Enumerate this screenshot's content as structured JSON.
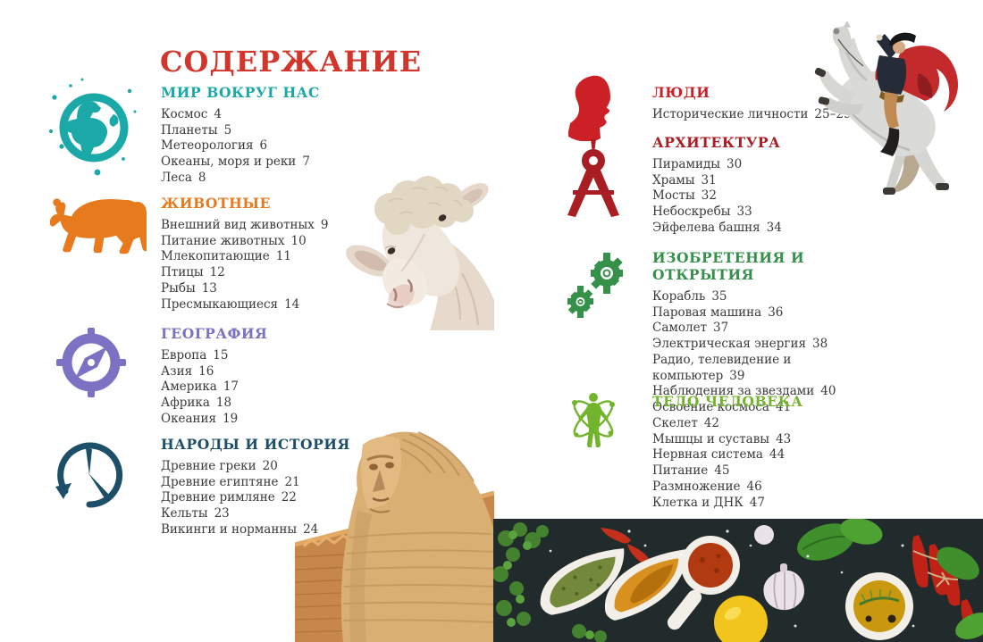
{
  "page_title": {
    "text": "СОДЕРЖАНИЕ",
    "color": "#d2352b"
  },
  "sections": [
    {
      "title": "МИР ВОКРУГ НАС",
      "color": "#1ba8a8",
      "icon": "globe-icon",
      "items": [
        {
          "label": "Космос",
          "page": "4"
        },
        {
          "label": "Планеты",
          "page": "5"
        },
        {
          "label": "Метеорология",
          "page": "6"
        },
        {
          "label": "Океаны, моря и реки",
          "page": "7"
        },
        {
          "label": "Леса",
          "page": "8"
        }
      ]
    },
    {
      "title": "ЖИВОТНЫЕ",
      "color": "#e87a1e",
      "icon": "lion-icon",
      "items": [
        {
          "label": "Внешний вид животных",
          "page": "9"
        },
        {
          "label": "Питание животных",
          "page": "10"
        },
        {
          "label": "Млекопитающие",
          "page": "11"
        },
        {
          "label": "Птицы",
          "page": "12"
        },
        {
          "label": "Рыбы",
          "page": "13"
        },
        {
          "label": "Пресмыкающиеся",
          "page": "14"
        }
      ]
    },
    {
      "title": "ГЕОГРАФИЯ",
      "color": "#7b72c3",
      "icon": "compass-icon",
      "items": [
        {
          "label": "Европа",
          "page": "15"
        },
        {
          "label": "Азия",
          "page": "16"
        },
        {
          "label": "Америка",
          "page": "17"
        },
        {
          "label": "Африка",
          "page": "18"
        },
        {
          "label": "Океания",
          "page": "19"
        }
      ]
    },
    {
      "title": "НАРОДЫ И ИСТОРИЯ",
      "color": "#1d4f68",
      "icon": "history-clock-icon",
      "items": [
        {
          "label": "Древние греки",
          "page": "20"
        },
        {
          "label": "Древние египтяне",
          "page": "21"
        },
        {
          "label": "Древние римляне",
          "page": "22"
        },
        {
          "label": "Кельты",
          "page": "23"
        },
        {
          "label": "Викинги и норманны",
          "page": "24"
        }
      ]
    },
    {
      "title": "ЛЮДИ",
      "color": "#cc2027",
      "icon": "head-silhouette-icon",
      "items": [
        {
          "label": "Исторические личности",
          "page": "25–29"
        }
      ]
    },
    {
      "title": "АРХИТЕКТУРА",
      "color": "#a81e23",
      "icon": "drafting-compass-icon",
      "items": [
        {
          "label": "Пирамиды",
          "page": "30"
        },
        {
          "label": "Храмы",
          "page": "31"
        },
        {
          "label": "Мосты",
          "page": "32"
        },
        {
          "label": "Небоскребы",
          "page": "33"
        },
        {
          "label": "Эйфелева башня",
          "page": "34"
        }
      ]
    },
    {
      "title": "ИЗОБРЕТЕНИЯ И ОТКРЫТИЯ",
      "color": "#35914a",
      "icon": "gears-icon",
      "items": [
        {
          "label": "Корабль",
          "page": "35"
        },
        {
          "label": "Паровая машина",
          "page": "36"
        },
        {
          "label": "Самолет",
          "page": "37"
        },
        {
          "label": "Электрическая энергия",
          "page": "38"
        },
        {
          "label": "Радио, телевидение и компьютер",
          "page": "39"
        },
        {
          "label": "Наблюдения за звездами",
          "page": "40"
        },
        {
          "label": "Освоение космоса",
          "page": "41"
        }
      ]
    },
    {
      "title": "ТЕЛО ЧЕЛОВЕКА",
      "color": "#72b52c",
      "icon": "atom-body-icon",
      "items": [
        {
          "label": "Скелет",
          "page": "42"
        },
        {
          "label": "Мышцы и суставы",
          "page": "43"
        },
        {
          "label": "Нервная система",
          "page": "44"
        },
        {
          "label": "Питание",
          "page": "45"
        },
        {
          "label": "Размножение",
          "page": "46"
        },
        {
          "label": "Клетка и ДНК",
          "page": "47"
        }
      ]
    }
  ],
  "images": {
    "sheep": "sheep head photo",
    "napoleon": "Napoleon on rearing horse painting",
    "sphinx": "Great Sphinx and pyramid photo",
    "spices": "spices and herbs on dark table photo"
  }
}
